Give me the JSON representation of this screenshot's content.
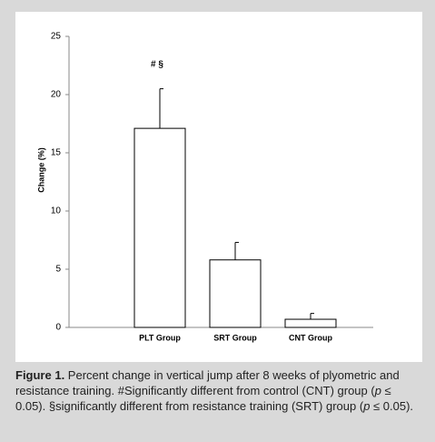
{
  "chart_data": {
    "type": "bar",
    "ylabel": "Change (%)",
    "categories": [
      "PLT Group",
      "SRT Group",
      "CNT Group"
    ],
    "values": [
      17.1,
      5.8,
      0.7
    ],
    "errors": [
      3.4,
      1.5,
      0.5
    ],
    "color": "#ffffff",
    "ylim": [
      0,
      25
    ],
    "yticks": [
      0,
      5,
      10,
      15,
      20,
      25
    ],
    "annotation": "# §"
  },
  "caption": {
    "label": "Figure 1.",
    "segments": [
      {
        "text": " Percent change in vertical jump after 8 weeks of plyometric and resistance training. #Significantly different from control (CNT) group ("
      },
      {
        "text": "p",
        "italic": true
      },
      {
        "text": " ≤ 0.05). §significantly different from resistance training (SRT) group ("
      },
      {
        "text": "p",
        "italic": true
      },
      {
        "text": " ≤ 0.05)."
      }
    ]
  }
}
